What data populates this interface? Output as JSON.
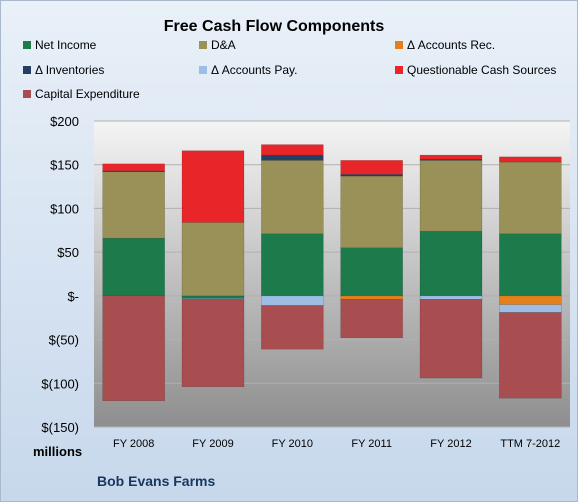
{
  "chart_data": {
    "type": "bar",
    "stacked": true,
    "title": "Free Cash Flow Components",
    "units_label": "millions",
    "source_label": "Bob Evans Farms",
    "categories": [
      "FY 2008",
      "FY 2009",
      "FY 2010",
      "FY 2011",
      "FY 2012",
      "TTM 7-2012"
    ],
    "ylim": [
      -150,
      200
    ],
    "yticks": [
      200,
      150,
      100,
      50,
      0,
      -50,
      -100,
      -150
    ],
    "ytick_labels": [
      "$200",
      "$150",
      "$100",
      "$50",
      "$-",
      "$(50)",
      "$(100)",
      "$(150)"
    ],
    "grid": true,
    "legend_position": "top",
    "series": [
      {
        "name": "Net Income",
        "color": "#1d7a4a",
        "values": [
          66,
          -3,
          71,
          55,
          74,
          71
        ]
      },
      {
        "name": "D&A",
        "color": "#9a9158",
        "values": [
          76,
          84,
          84,
          82,
          81,
          82
        ]
      },
      {
        "name": "Δ Accounts Rec.",
        "color": "#e3801c",
        "values": [
          0,
          0,
          0,
          -4,
          0,
          -10
        ]
      },
      {
        "name": "Δ Inventories",
        "color": "#243f64",
        "values": [
          1,
          0,
          6,
          2,
          1,
          0
        ]
      },
      {
        "name": "Δ Accounts Pay.",
        "color": "#9dbde4",
        "values": [
          0,
          -1,
          -11,
          0,
          -4,
          -9
        ]
      },
      {
        "name": "Questionable Cash Sources",
        "color": "#e8262a",
        "values": [
          8,
          82,
          12,
          16,
          5,
          6
        ]
      },
      {
        "name": "Capital Expenditure",
        "color": "#a84e50",
        "values": [
          -120,
          -100,
          -50,
          -44,
          -90,
          -98
        ]
      }
    ]
  }
}
